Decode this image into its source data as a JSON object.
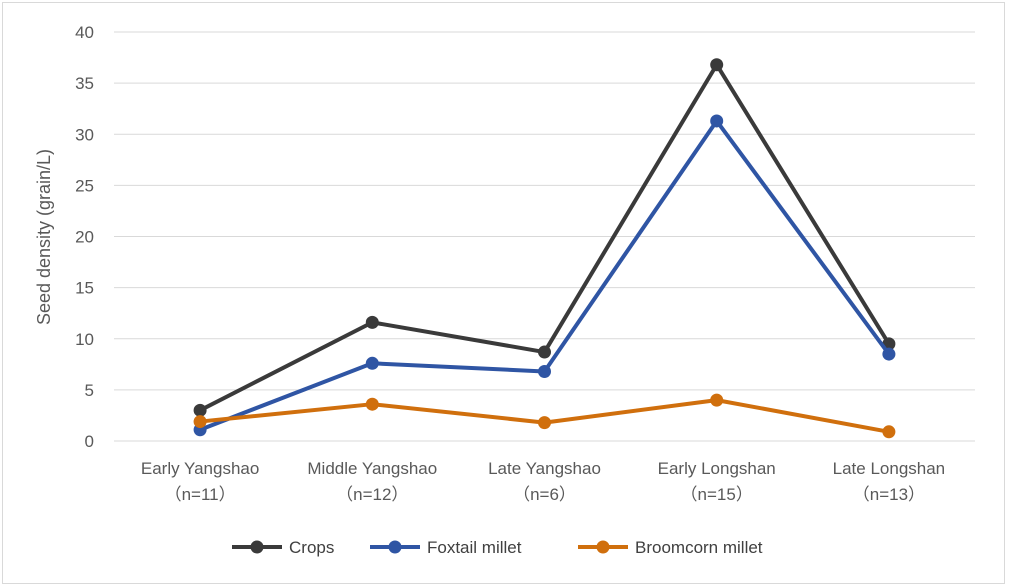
{
  "chart_data": {
    "type": "line",
    "title": "",
    "xlabel": "",
    "ylabel": "Seed density (grain/L)",
    "ylim": [
      0,
      40
    ],
    "yticks": [
      0,
      5,
      10,
      15,
      20,
      25,
      30,
      35,
      40
    ],
    "grid": true,
    "legend_position": "bottom",
    "categories": [
      [
        "Early Yangshao",
        "（n=11）"
      ],
      [
        "Middle Yangshao",
        "（n=12）"
      ],
      [
        "Late Yangshao",
        "（n=6）"
      ],
      [
        "Early Longshan",
        "（n=15）"
      ],
      [
        "Late Longshan",
        "（n=13）"
      ]
    ],
    "series": [
      {
        "name": "Crops",
        "color": "#3a3a3a",
        "values": [
          3.0,
          11.6,
          8.7,
          36.8,
          9.5
        ]
      },
      {
        "name": "Foxtail millet",
        "color": "#2f55a4",
        "values": [
          1.1,
          7.6,
          6.8,
          31.3,
          8.5
        ]
      },
      {
        "name": "Broomcorn millet",
        "color": "#d06f0d",
        "values": [
          1.9,
          3.6,
          1.8,
          4.0,
          0.9
        ]
      }
    ]
  }
}
